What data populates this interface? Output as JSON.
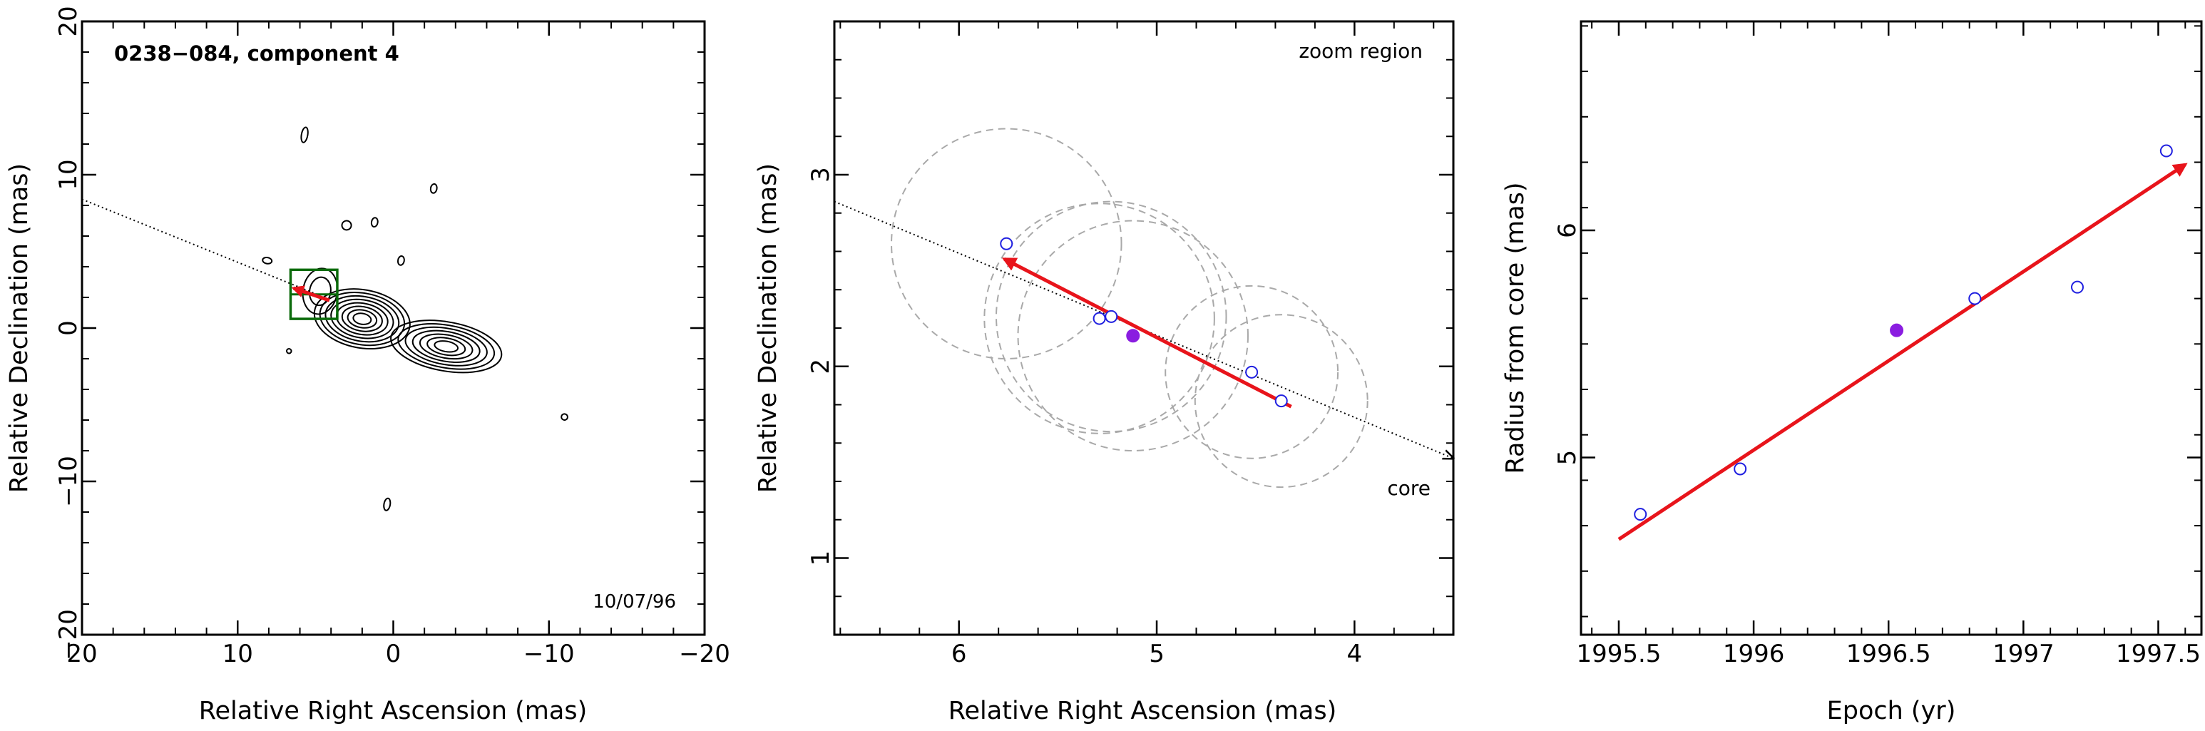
{
  "chart_data": [
    {
      "type": "scatter",
      "subtype": "contour-map",
      "title": "0238−084, component 4",
      "xlabel": "Relative Right Ascension (mas)",
      "ylabel": "Relative Declination (mas)",
      "xlim": [
        20,
        -20
      ],
      "ylim": [
        -20,
        20
      ],
      "xticks": [
        20,
        10,
        0,
        -10,
        -20
      ],
      "yticks": [
        -20,
        -10,
        0,
        10,
        20
      ],
      "xtick_labels": [
        "20",
        "10",
        "0",
        "−10",
        "−20"
      ],
      "ytick_labels": [
        "−20",
        "−10",
        "0",
        "10",
        "20"
      ],
      "date_label": "10/07/96",
      "grid": false,
      "zoom_box": {
        "x": [
          6.6,
          3.6
        ],
        "y": [
          0.6,
          3.8
        ]
      },
      "direction_line": {
        "x": [
          20,
          4.9
        ],
        "y": [
          8.4,
          2.2
        ]
      },
      "component_arrow": {
        "x": [
          4.1,
          6.4
        ],
        "y": [
          1.8,
          2.6
        ],
        "color": "#e8141b"
      },
      "contours": [
        {
          "cx": 2.0,
          "cy": 0.6,
          "rx": 3.1,
          "ry": 1.9,
          "n": 8
        },
        {
          "cx": -3.4,
          "cy": -1.2,
          "rx": 3.6,
          "ry": 1.6,
          "n": 7
        },
        {
          "cx": 4.7,
          "cy": 2.4,
          "rx": 1.1,
          "ry": 1.5,
          "n": 2
        },
        {
          "cx": 5.7,
          "cy": 12.6,
          "rx": 0.2,
          "ry": 0.5,
          "n": 1
        },
        {
          "cx": -2.6,
          "cy": 9.1,
          "rx": 0.2,
          "ry": 0.3,
          "n": 1
        },
        {
          "cx": 3.0,
          "cy": 6.7,
          "rx": 0.3,
          "ry": 0.3,
          "n": 1
        },
        {
          "cx": 1.2,
          "cy": 6.9,
          "rx": 0.2,
          "ry": 0.3,
          "n": 1
        },
        {
          "cx": -0.5,
          "cy": 4.4,
          "rx": 0.2,
          "ry": 0.3,
          "n": 1
        },
        {
          "cx": 8.1,
          "cy": 4.4,
          "rx": 0.3,
          "ry": 0.2,
          "n": 1
        },
        {
          "cx": 0.4,
          "cy": -11.5,
          "rx": 0.2,
          "ry": 0.4,
          "n": 1
        },
        {
          "cx": -11.0,
          "cy": -5.8,
          "rx": 0.2,
          "ry": 0.2,
          "n": 1
        },
        {
          "cx": 6.7,
          "cy": -1.5,
          "rx": 0.15,
          "ry": 0.15,
          "n": 1
        }
      ]
    },
    {
      "type": "scatter",
      "title": "zoom region",
      "xlabel": "Relative Right Ascension (mas)",
      "ylabel": "Relative Declination (mas)",
      "xlim": [
        6.63,
        3.5
      ],
      "ylim": [
        0.6,
        3.8
      ],
      "xticks": [
        6,
        5,
        4
      ],
      "yticks": [
        1,
        2,
        3
      ],
      "xtick_labels": [
        "6",
        "5",
        "4"
      ],
      "ytick_labels": [
        "1",
        "2",
        "3"
      ],
      "grid": false,
      "core_label": "core",
      "direction_line": {
        "x": [
          6.63,
          3.5
        ],
        "y": [
          2.86,
          1.52
        ]
      },
      "component_arrow": {
        "x": [
          4.32,
          5.77
        ],
        "y": [
          1.79,
          2.56
        ],
        "color": "#e8141b"
      },
      "points": {
        "x": [
          5.76,
          5.29,
          5.23,
          4.52,
          4.37
        ],
        "y": [
          2.64,
          2.25,
          2.26,
          1.97,
          1.82
        ],
        "marker": "open-circle",
        "color": "#2020e0"
      },
      "highlight_point": {
        "x": 5.12,
        "y": 2.16,
        "marker": "filled-circle",
        "color": "#8a1de0"
      },
      "error_circles": [
        {
          "x": 5.76,
          "y": 2.64,
          "r": 0.6
        },
        {
          "x": 5.29,
          "y": 2.25,
          "r": 0.6
        },
        {
          "x": 5.23,
          "y": 2.26,
          "r": 0.6
        },
        {
          "x": 5.12,
          "y": 2.16,
          "r": 0.6
        },
        {
          "x": 4.52,
          "y": 1.97,
          "r": 0.45
        },
        {
          "x": 4.37,
          "y": 1.82,
          "r": 0.45
        }
      ]
    },
    {
      "type": "scatter",
      "xlabel": "Epoch (yr)",
      "ylabel": "Radius from core (mas)",
      "xlim": [
        1995.36,
        1997.66
      ],
      "ylim": [
        4.22,
        6.92
      ],
      "xticks": [
        1995.5,
        1996,
        1996.5,
        1997,
        1997.5
      ],
      "yticks": [
        5,
        6
      ],
      "xtick_labels": [
        "1995.5",
        "1996",
        "1996.5",
        "1997",
        "1997.5"
      ],
      "ytick_labels": [
        "5",
        "6"
      ],
      "grid": false,
      "points": {
        "x": [
          1995.58,
          1995.95,
          1996.82,
          1997.2,
          1997.53
        ],
        "y": [
          4.75,
          4.95,
          5.7,
          5.75,
          6.35
        ],
        "marker": "open-circle",
        "color": "#2020e0"
      },
      "highlight_point": {
        "x": 1996.53,
        "y": 5.56,
        "marker": "filled-circle",
        "color": "#8a1de0"
      },
      "fit_arrow": {
        "x": [
          1995.5,
          1997.6
        ],
        "y": [
          4.64,
          6.29
        ],
        "color": "#e8141b"
      }
    }
  ]
}
